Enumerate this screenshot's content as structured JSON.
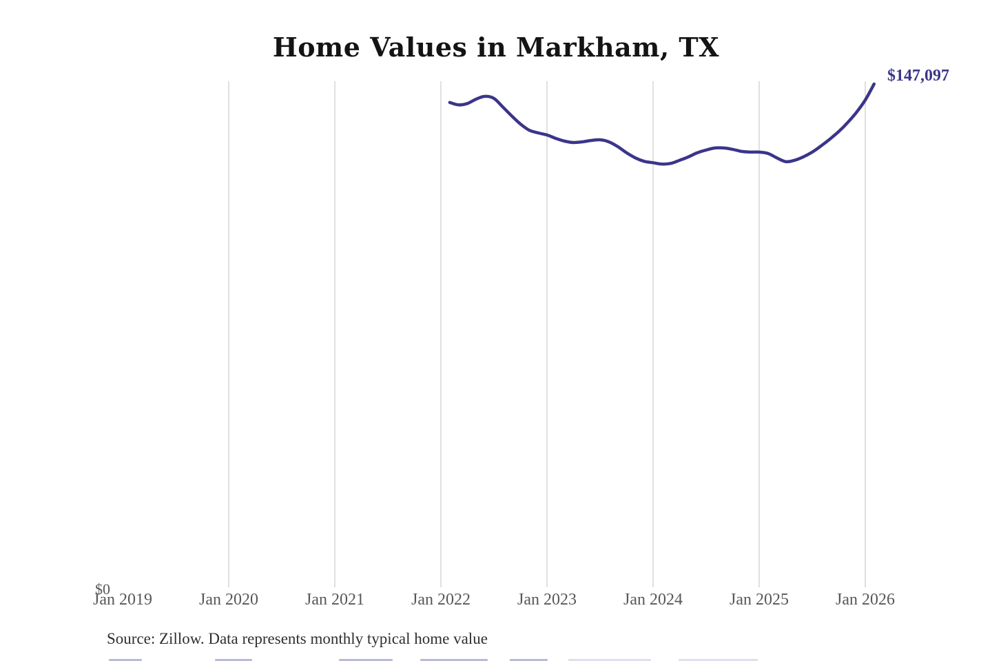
{
  "header": {
    "title": "Home Values in Markham, TX"
  },
  "footer": {
    "source_note": "Source: Zillow. Data represents monthly typical home value"
  },
  "chart_data": {
    "type": "line",
    "title": "Home Values in Markham, TX",
    "xlabel": "",
    "ylabel": "",
    "x_tick_labels": [
      "Jan 2019",
      "Jan 2020",
      "Jan 2021",
      "Jan 2022",
      "Jan 2023",
      "Jan 2024",
      "Jan 2025",
      "Jan 2026"
    ],
    "y_zero_label": "$0",
    "end_label": "$147,097",
    "end_value": 147097,
    "ylim": [
      0,
      147097
    ],
    "x_range": [
      "Jan 2019",
      "Feb 2026"
    ],
    "grid": "vertical-yearly-gridlines-only",
    "legend": "none",
    "line_color": "#3b3589",
    "gridline_color": "#cccccc",
    "label_color": "#575757",
    "series": [
      {
        "name": "Monthly typical home value",
        "points": [
          {
            "m": "Feb 2022",
            "v": 141700
          },
          {
            "m": "Mar 2022",
            "v": 141000
          },
          {
            "m": "Apr 2022",
            "v": 141400
          },
          {
            "m": "May 2022",
            "v": 142700
          },
          {
            "m": "Jun 2022",
            "v": 143500
          },
          {
            "m": "Jul 2022",
            "v": 142900
          },
          {
            "m": "Aug 2022",
            "v": 140400
          },
          {
            "m": "Sep 2022",
            "v": 137800
          },
          {
            "m": "Oct 2022",
            "v": 135400
          },
          {
            "m": "Nov 2022",
            "v": 133600
          },
          {
            "m": "Dec 2022",
            "v": 132800
          },
          {
            "m": "Jan 2023",
            "v": 132200
          },
          {
            "m": "Feb 2023",
            "v": 131200
          },
          {
            "m": "Mar 2023",
            "v": 130400
          },
          {
            "m": "Apr 2023",
            "v": 130000
          },
          {
            "m": "May 2023",
            "v": 130200
          },
          {
            "m": "Jun 2023",
            "v": 130600
          },
          {
            "m": "Jul 2023",
            "v": 130800
          },
          {
            "m": "Aug 2023",
            "v": 130200
          },
          {
            "m": "Sep 2023",
            "v": 128800
          },
          {
            "m": "Oct 2023",
            "v": 127000
          },
          {
            "m": "Nov 2023",
            "v": 125500
          },
          {
            "m": "Dec 2023",
            "v": 124500
          },
          {
            "m": "Jan 2024",
            "v": 124100
          },
          {
            "m": "Feb 2024",
            "v": 123700
          },
          {
            "m": "Mar 2024",
            "v": 123900
          },
          {
            "m": "Apr 2024",
            "v": 124800
          },
          {
            "m": "May 2024",
            "v": 125800
          },
          {
            "m": "Jun 2024",
            "v": 127000
          },
          {
            "m": "Jul 2024",
            "v": 127800
          },
          {
            "m": "Aug 2024",
            "v": 128400
          },
          {
            "m": "Sep 2024",
            "v": 128400
          },
          {
            "m": "Oct 2024",
            "v": 128000
          },
          {
            "m": "Nov 2024",
            "v": 127400
          },
          {
            "m": "Dec 2024",
            "v": 127200
          },
          {
            "m": "Jan 2025",
            "v": 127200
          },
          {
            "m": "Feb 2025",
            "v": 126800
          },
          {
            "m": "Mar 2025",
            "v": 125500
          },
          {
            "m": "Apr 2025",
            "v": 124400
          },
          {
            "m": "May 2025",
            "v": 124800
          },
          {
            "m": "Jun 2025",
            "v": 125800
          },
          {
            "m": "Jul 2025",
            "v": 127200
          },
          {
            "m": "Aug 2025",
            "v": 129000
          },
          {
            "m": "Sep 2025",
            "v": 131000
          },
          {
            "m": "Oct 2025",
            "v": 133200
          },
          {
            "m": "Nov 2025",
            "v": 135800
          },
          {
            "m": "Dec 2025",
            "v": 138800
          },
          {
            "m": "Jan 2026",
            "v": 142400
          },
          {
            "m": "Feb 2026",
            "v": 147097
          }
        ]
      }
    ]
  }
}
